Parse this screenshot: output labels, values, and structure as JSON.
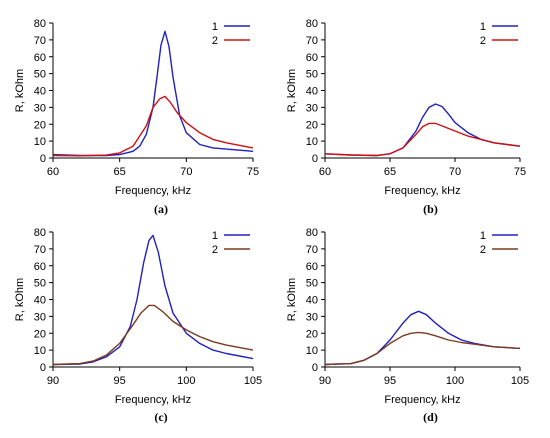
{
  "chart_data": [
    {
      "id": "a",
      "type": "line",
      "panel_label": "(a)",
      "xlabel": "Frequency, kHz",
      "ylabel": "R, kOhm",
      "xlim": [
        60,
        75
      ],
      "ylim": [
        0,
        80
      ],
      "xticks": [
        60,
        65,
        70,
        75
      ],
      "yticks": [
        0,
        10,
        20,
        30,
        40,
        50,
        60,
        70,
        80
      ],
      "grid": false,
      "legend": "top-right",
      "series": [
        {
          "name": "1",
          "color": "#2020c0",
          "x": [
            60,
            62,
            64,
            65,
            66,
            66.5,
            67,
            67.5,
            67.8,
            68.1,
            68.4,
            68.7,
            69.0,
            69.5,
            70,
            71,
            72,
            75
          ],
          "y": [
            2,
            1.5,
            1.5,
            2,
            4,
            7,
            14,
            30,
            48,
            67,
            75,
            66,
            48,
            25,
            15,
            8,
            6,
            4
          ]
        },
        {
          "name": "2",
          "color": "#d01010",
          "x": [
            60,
            62,
            64,
            65,
            66,
            67,
            67.5,
            68,
            68.4,
            68.8,
            69.3,
            70,
            71,
            72,
            73,
            75
          ],
          "y": [
            1.5,
            1.3,
            1.7,
            3,
            7,
            19,
            30,
            35,
            36.5,
            33,
            27,
            21,
            15,
            11,
            9,
            6
          ]
        }
      ]
    },
    {
      "id": "b",
      "type": "line",
      "panel_label": "(b)",
      "xlabel": "Frequency, kHz",
      "ylabel": "R, kOhm",
      "xlim": [
        60,
        75
      ],
      "ylim": [
        0,
        80
      ],
      "xticks": [
        60,
        65,
        70,
        75
      ],
      "yticks": [
        0,
        10,
        20,
        30,
        40,
        50,
        60,
        70,
        80
      ],
      "grid": false,
      "legend": "top-right",
      "series": [
        {
          "name": "1",
          "color": "#2020c0",
          "x": [
            60,
            62,
            64,
            65,
            66,
            67,
            67.5,
            68,
            68.5,
            69,
            69.5,
            70,
            71,
            72,
            73,
            75
          ],
          "y": [
            2.5,
            1.8,
            1.5,
            2.5,
            6,
            16,
            24,
            30,
            32,
            30.5,
            26,
            21,
            15,
            11,
            9,
            7
          ]
        },
        {
          "name": "2",
          "color": "#d01010",
          "x": [
            60,
            62,
            64,
            65,
            66,
            67,
            67.5,
            68,
            68.5,
            69,
            70,
            71,
            72,
            73,
            75
          ],
          "y": [
            2.5,
            1.8,
            1.5,
            2.5,
            6,
            14,
            18.5,
            20.5,
            20.5,
            19,
            16,
            13,
            11,
            9,
            7
          ]
        }
      ]
    },
    {
      "id": "c",
      "type": "line",
      "panel_label": "(c)",
      "xlabel": "Frequency, kHz",
      "ylabel": "R, kOhm",
      "xlim": [
        90,
        105
      ],
      "ylim": [
        0,
        80
      ],
      "xticks": [
        90,
        95,
        100,
        105
      ],
      "yticks": [
        0,
        10,
        20,
        30,
        40,
        50,
        60,
        70,
        80
      ],
      "grid": false,
      "legend": "top-right",
      "series": [
        {
          "name": "1",
          "color": "#2020c0",
          "x": [
            90,
            92,
            93,
            94,
            95,
            95.8,
            96.3,
            96.8,
            97.2,
            97.5,
            97.9,
            98.4,
            99,
            100,
            101,
            102,
            103,
            105
          ],
          "y": [
            1.5,
            1.8,
            3,
            6,
            12,
            24,
            40,
            62,
            75,
            78,
            68,
            48,
            32,
            20,
            14,
            10,
            8,
            5
          ]
        },
        {
          "name": "2",
          "color": "#7b3a1e",
          "x": [
            90,
            92,
            93,
            94,
            95,
            96,
            96.6,
            97.2,
            97.6,
            98.2,
            99,
            100,
            101,
            102,
            103,
            105
          ],
          "y": [
            1.5,
            2,
            3.5,
            7,
            14,
            25,
            32,
            36.5,
            36.5,
            33,
            27,
            22,
            18,
            15,
            13,
            10
          ]
        }
      ]
    },
    {
      "id": "d",
      "type": "line",
      "panel_label": "(d)",
      "xlabel": "Frequency, kHz",
      "ylabel": "R, kOhm",
      "xlim": [
        90,
        105
      ],
      "ylim": [
        0,
        80
      ],
      "xticks": [
        90,
        95,
        100,
        105
      ],
      "yticks": [
        0,
        10,
        20,
        30,
        40,
        50,
        60,
        70,
        80
      ],
      "grid": false,
      "legend": "top-right",
      "series": [
        {
          "name": "1",
          "color": "#2020c0",
          "x": [
            90,
            92,
            93,
            94,
            95,
            96,
            96.6,
            97.2,
            97.8,
            98.5,
            99.5,
            100.5,
            101.5,
            103,
            105
          ],
          "y": [
            1.5,
            2,
            4,
            8,
            16,
            26,
            31,
            33,
            31,
            26,
            20,
            16,
            14,
            12,
            11
          ]
        },
        {
          "name": "2",
          "color": "#7b3a1e",
          "x": [
            90,
            92,
            93,
            94,
            95,
            96,
            96.6,
            97.2,
            97.8,
            98.5,
            99.5,
            100.5,
            101.5,
            103,
            105
          ],
          "y": [
            1.5,
            2,
            4,
            8,
            14,
            18.5,
            20,
            20.5,
            20,
            18.5,
            16,
            14.5,
            13.5,
            12,
            11
          ]
        }
      ]
    }
  ]
}
